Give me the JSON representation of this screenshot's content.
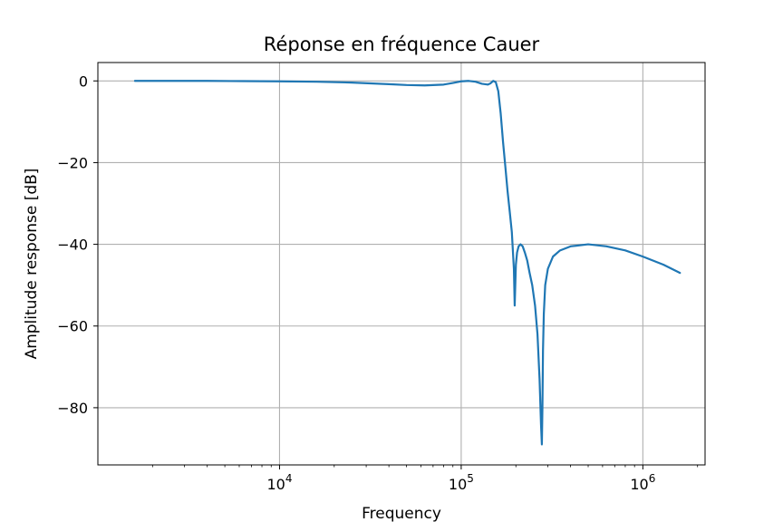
{
  "chart_data": {
    "type": "line",
    "title": "Réponse en fréquence Cauer",
    "xlabel": "Frequency",
    "ylabel": "Amplitude response [dB]",
    "xscale": "log",
    "xlim": [
      1000,
      2200000
    ],
    "ylim": [
      -94,
      4.5
    ],
    "grid": true,
    "line_color": "#1f77b4",
    "x_ticks": [
      {
        "value": 10000,
        "base": "10",
        "exp": "4"
      },
      {
        "value": 100000,
        "base": "10",
        "exp": "5"
      },
      {
        "value": 1000000,
        "base": "10",
        "exp": "6"
      }
    ],
    "y_ticks": [
      {
        "value": 0,
        "label": "0"
      },
      {
        "value": -20,
        "label": "−20"
      },
      {
        "value": -40,
        "label": "−40"
      },
      {
        "value": -60,
        "label": "−60"
      },
      {
        "value": -80,
        "label": "−80"
      }
    ],
    "series": [
      {
        "x": [
          1600,
          2500,
          4000,
          6300,
          10000,
          16000,
          25000,
          40000,
          50000,
          63000,
          80000,
          90000,
          100000,
          110000,
          120000,
          130000,
          140000,
          145000,
          150000,
          155000,
          160000,
          165000,
          170000,
          175000,
          180000,
          185000,
          190000,
          195000,
          197000,
          200000,
          203000,
          207000,
          212000,
          218000,
          224000,
          231000,
          238000,
          246000,
          255000,
          263000,
          270000,
          275000,
          278000,
          280000,
          282000,
          285000,
          290000,
          300000,
          320000,
          350000,
          400000,
          500000,
          630000,
          800000,
          1000000,
          1300000,
          1600000
        ],
        "y": [
          0,
          0,
          0,
          -0.05,
          -0.1,
          -0.2,
          -0.4,
          -0.8,
          -1.0,
          -1.1,
          -0.9,
          -0.5,
          -0.1,
          0,
          -0.2,
          -0.7,
          -0.9,
          -0.6,
          0,
          -0.3,
          -2.5,
          -8,
          -15,
          -21,
          -27,
          -32,
          -37,
          -46,
          -55,
          -45,
          -42,
          -40.5,
          -40,
          -40.5,
          -42,
          -44,
          -47,
          -50,
          -55,
          -62,
          -73,
          -84,
          -89,
          -80,
          -66,
          -57,
          -50,
          -46,
          -43,
          -41.5,
          -40.5,
          -40,
          -40.5,
          -41.5,
          -43,
          -45,
          -47
        ]
      }
    ]
  }
}
